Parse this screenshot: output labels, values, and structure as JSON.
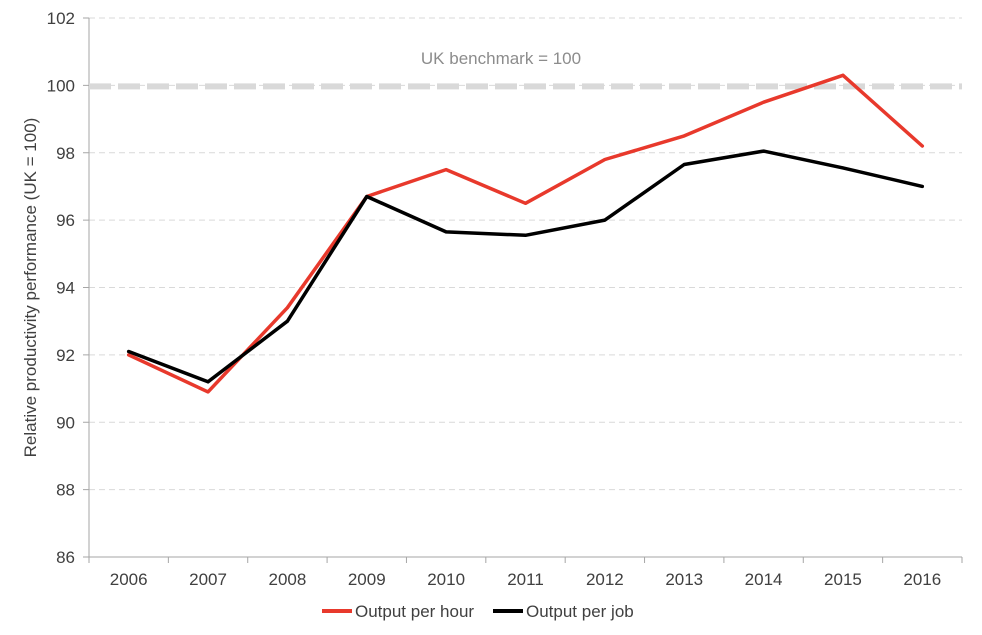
{
  "chart_data": {
    "type": "line",
    "title": "",
    "xlabel": "",
    "ylabel": "Relative productivity performance (UK = 100)",
    "ylim": [
      86,
      102
    ],
    "yticks": [
      86,
      88,
      90,
      92,
      94,
      96,
      98,
      100,
      102
    ],
    "grid": true,
    "legend_position": "bottom",
    "categories": [
      "2006",
      "2007",
      "2008",
      "2009",
      "2010",
      "2011",
      "2012",
      "2013",
      "2014",
      "2015",
      "2016"
    ],
    "series": [
      {
        "name": "Output per hour",
        "color": "#e8392c",
        "values": [
          92.0,
          90.9,
          93.4,
          96.7,
          97.5,
          96.5,
          97.8,
          98.5,
          99.5,
          100.3,
          98.2
        ]
      },
      {
        "name": "Output per job",
        "color": "#000000",
        "values": [
          92.1,
          91.2,
          93.0,
          96.7,
          95.65,
          95.55,
          96.0,
          97.65,
          98.05,
          97.55,
          97.0
        ]
      }
    ],
    "benchmark": {
      "label": "UK benchmark = 100",
      "value": 100,
      "color": "#d9d9d9"
    }
  }
}
